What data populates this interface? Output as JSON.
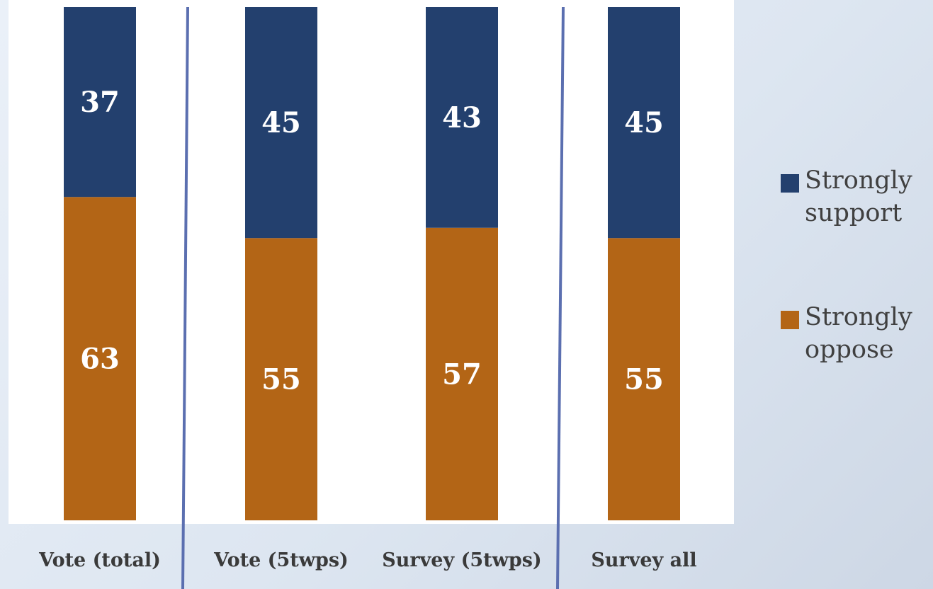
{
  "chart_data": {
    "type": "bar",
    "stacked": true,
    "categories": [
      "Vote (total)",
      "Vote (5twps)",
      "Survey (5twps)",
      "Survey all"
    ],
    "series": [
      {
        "name": "Strongly support",
        "values": [
          37,
          45,
          43,
          45
        ],
        "color": "#23406e"
      },
      {
        "name": "Strongly oppose",
        "values": [
          63,
          55,
          57,
          55
        ],
        "color": "#b36516"
      }
    ],
    "ylim": [
      0,
      100
    ],
    "grid": false,
    "legend_position": "right"
  },
  "legend": {
    "items": [
      {
        "label": "Strongly support",
        "color": "#23406e"
      },
      {
        "label": "Strongly oppose",
        "color": "#b36516"
      }
    ]
  },
  "separator_color": "#5b6fb0"
}
